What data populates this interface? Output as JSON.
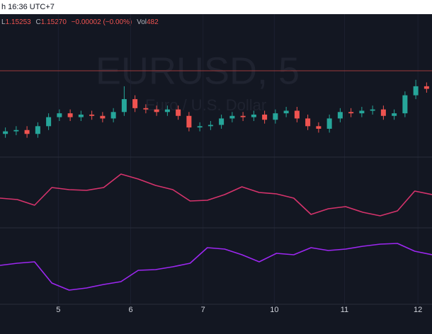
{
  "header": {
    "time": "h 16:36 UTC+7",
    "legend": {
      "low_key": "L",
      "low": "1.15253",
      "close_key": "C",
      "close": "1.15270",
      "change": "−0.00002 (−0.00%)",
      "vol_key": "Vol",
      "vol": "482"
    }
  },
  "watermark": {
    "symbol": "EURUSD, 5",
    "description": "Euro / U.S. Dollar"
  },
  "xaxis": {
    "ticks": [
      {
        "value": 4.9,
        "label": "5"
      },
      {
        "value": 11.6,
        "label": "6"
      },
      {
        "value": 18.3,
        "label": "7"
      },
      {
        "value": 24.9,
        "label": "10"
      },
      {
        "value": 31.4,
        "label": "11"
      },
      {
        "value": 38.2,
        "label": "12"
      }
    ]
  },
  "chart_data": [
    {
      "type": "candlestick",
      "up_color": "#26a69a",
      "down_color": "#ef5350",
      "price_line": 1.1547,
      "price_line_color": "#9c3a3a",
      "ylim": [
        1.148,
        1.158
      ],
      "open": [
        1.1498,
        1.15,
        1.1501,
        1.1498,
        1.1504,
        1.1511,
        1.1514,
        1.1511,
        1.1513,
        1.1512,
        1.151,
        1.1515,
        1.1525,
        1.1518,
        1.1517,
        1.1515,
        1.1517,
        1.1512,
        1.1503,
        1.1504,
        1.1505,
        1.151,
        1.1512,
        1.1511,
        1.1513,
        1.1509,
        1.1514,
        1.1516,
        1.151,
        1.1504,
        1.1502,
        1.151,
        1.1515,
        1.1514,
        1.1516,
        1.1517,
        1.1512,
        1.1514,
        1.1528,
        1.1535
      ],
      "high": [
        1.1503,
        1.1504,
        1.1504,
        1.1507,
        1.1514,
        1.1517,
        1.1517,
        1.1516,
        1.1516,
        1.1515,
        1.1518,
        1.1535,
        1.1528,
        1.1521,
        1.152,
        1.152,
        1.152,
        1.1515,
        1.1507,
        1.1508,
        1.1513,
        1.1515,
        1.1515,
        1.1516,
        1.1516,
        1.1517,
        1.1519,
        1.1519,
        1.1513,
        1.1507,
        1.1513,
        1.1518,
        1.1518,
        1.1519,
        1.152,
        1.152,
        1.1517,
        1.1531,
        1.154,
        1.1538
      ],
      "low": [
        1.1495,
        1.1497,
        1.1495,
        1.1495,
        1.1501,
        1.1508,
        1.1508,
        1.1508,
        1.1509,
        1.1507,
        1.1507,
        1.1512,
        1.1515,
        1.1514,
        1.1512,
        1.1512,
        1.1509,
        1.15,
        1.15,
        1.1501,
        1.1502,
        1.1507,
        1.1508,
        1.1508,
        1.1506,
        1.1506,
        1.1511,
        1.1507,
        1.1501,
        1.1499,
        1.1499,
        1.1507,
        1.1511,
        1.1511,
        1.1513,
        1.1509,
        1.1509,
        1.1511,
        1.1525,
        1.153
      ],
      "close": [
        1.15,
        1.1501,
        1.1498,
        1.1504,
        1.1511,
        1.1514,
        1.1511,
        1.1513,
        1.1512,
        1.151,
        1.1515,
        1.1525,
        1.1518,
        1.1517,
        1.1515,
        1.1517,
        1.1512,
        1.1503,
        1.1504,
        1.1505,
        1.151,
        1.1512,
        1.1511,
        1.1513,
        1.1509,
        1.1514,
        1.1516,
        1.151,
        1.1504,
        1.1502,
        1.151,
        1.1515,
        1.1514,
        1.1516,
        1.1517,
        1.1512,
        1.1514,
        1.1528,
        1.1535,
        1.1533
      ]
    },
    {
      "type": "line",
      "color": "#d6336c",
      "ylim": [
        0,
        100
      ],
      "values": [
        42,
        40,
        32,
        57,
        54,
        53,
        57,
        76,
        69,
        60,
        54,
        38,
        39,
        47,
        58,
        50,
        48,
        42,
        19,
        27,
        30,
        22,
        17,
        24,
        52,
        47
      ]
    },
    {
      "type": "line",
      "color": "#9c27f0",
      "ylim": [
        0,
        108
      ],
      "values": [
        55,
        58,
        60,
        30,
        20,
        23,
        28,
        32,
        48,
        49,
        53,
        58,
        80,
        78,
        70,
        60,
        72,
        70,
        80,
        76,
        78,
        82,
        85,
        86,
        75,
        70
      ]
    }
  ]
}
